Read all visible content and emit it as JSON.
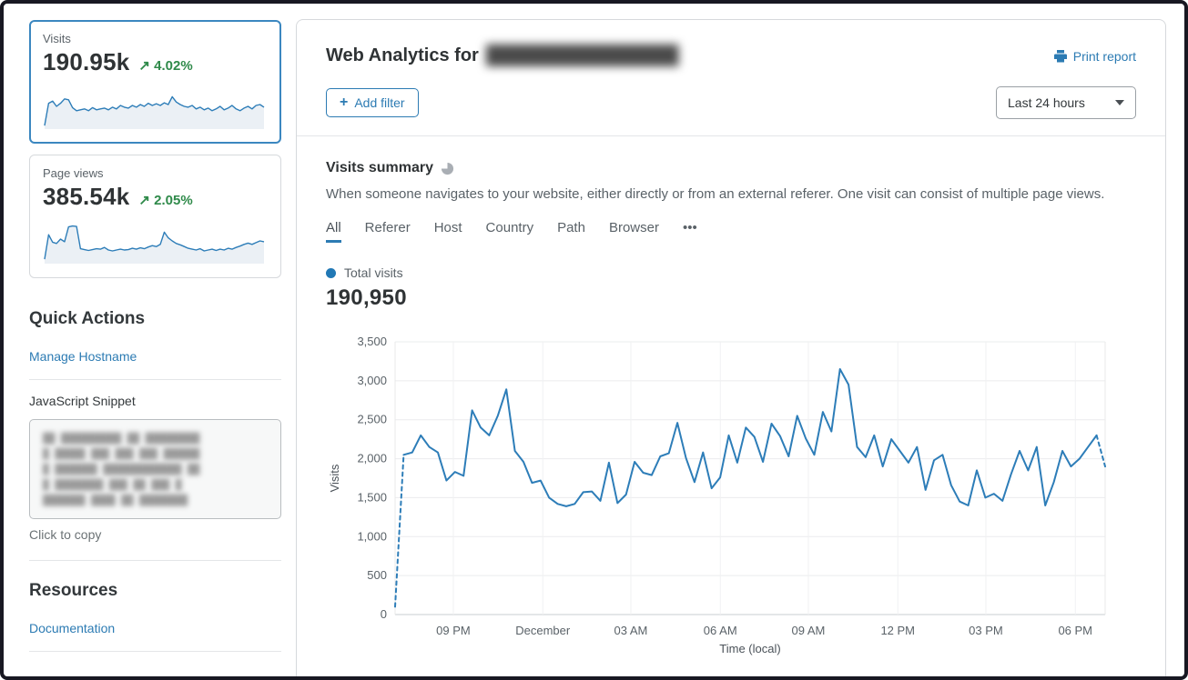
{
  "colors": {
    "accent_blue": "#2c7bb3",
    "chart_line": "#2d7db8",
    "positive_green": "#2f8a4a",
    "selected_card_border": "#3b87c0"
  },
  "sidebar": {
    "metric_cards": [
      {
        "label": "Visits",
        "value": "190.95k",
        "delta_arrow": "↗",
        "delta": "4.02%",
        "selected": true,
        "sparkline": [
          4,
          55,
          60,
          48,
          55,
          65,
          63,
          45,
          38,
          40,
          42,
          38,
          45,
          40,
          42,
          44,
          40,
          46,
          42,
          50,
          46,
          44,
          50,
          46,
          52,
          48,
          55,
          50,
          54,
          50,
          56,
          52,
          70,
          58,
          52,
          48,
          46,
          50,
          42,
          46,
          40,
          44,
          38,
          42,
          48,
          40,
          44,
          50,
          42,
          38,
          44,
          48,
          42,
          50,
          52,
          46
        ]
      },
      {
        "label": "Page views",
        "value": "385.54k",
        "delta_arrow": "↗",
        "delta": "2.05%",
        "selected": false,
        "sparkline": [
          6,
          62,
          45,
          42,
          52,
          46,
          80,
          82,
          81,
          30,
          28,
          26,
          28,
          30,
          29,
          33,
          27,
          25,
          27,
          29,
          27,
          28,
          31,
          29,
          32,
          30,
          34,
          37,
          35,
          40,
          68,
          55,
          48,
          42,
          39,
          35,
          31,
          29,
          27,
          30,
          25,
          27,
          29,
          26,
          29,
          27,
          31,
          29,
          33,
          36,
          40,
          43,
          40,
          44,
          48,
          46
        ]
      }
    ],
    "quick_actions_title": "Quick Actions",
    "manage_hostname_label": "Manage Hostname",
    "snippet_label": "JavaScript Snippet",
    "snippet_redacted_lines": [
      "██ ██████████ ██ █████████",
      "█ █████ ███ ███ ███ ██████",
      "█ ███████ █████████████ ██",
      "█ ████████ ███ ██ ███ █",
      "███████ ████ ██ ████████"
    ],
    "copy_hint": "Click to copy",
    "resources_title": "Resources",
    "documentation_label": "Documentation"
  },
  "header": {
    "title_prefix": "Web Analytics for",
    "domain_redacted": "████████████████",
    "print_report_label": "Print report",
    "add_filter_plus": "+",
    "add_filter_label": "Add filter",
    "time_range_value": "Last 24 hours"
  },
  "summary": {
    "title": "Visits summary",
    "description": "When someone navigates to your website, either directly or from an external referer. One visit can consist of multiple page views.",
    "tabs": [
      "All",
      "Referer",
      "Host",
      "Country",
      "Path",
      "Browser",
      "•••"
    ],
    "active_tab": "All",
    "legend_label": "Total visits",
    "total_value": "190,950"
  },
  "chart_data": {
    "type": "line",
    "title": "Total visits",
    "xlabel": "Time (local)",
    "ylabel": "Visits",
    "ylim": [
      0,
      3500
    ],
    "grid": true,
    "interval_minutes": 15,
    "y_ticks": [
      {
        "value": 0,
        "label": "0"
      },
      {
        "value": 500,
        "label": "500"
      },
      {
        "value": 1000,
        "label": "1,000"
      },
      {
        "value": 1500,
        "label": "1,500"
      },
      {
        "value": 2000,
        "label": "2,000"
      },
      {
        "value": 2500,
        "label": "2,500"
      },
      {
        "value": 3000,
        "label": "3,000"
      },
      {
        "value": 3500,
        "label": "3,500"
      }
    ],
    "x_ticks": [
      {
        "label": "09 PM",
        "pos": 0.082
      },
      {
        "label": "December",
        "pos": 0.208
      },
      {
        "label": "03 AM",
        "pos": 0.332
      },
      {
        "label": "06 AM",
        "pos": 0.458
      },
      {
        "label": "09 AM",
        "pos": 0.582
      },
      {
        "label": "12 PM",
        "pos": 0.708
      },
      {
        "label": "03 PM",
        "pos": 0.832
      },
      {
        "label": "06 PM",
        "pos": 0.958
      }
    ],
    "series": [
      {
        "name": "Total visits",
        "color": "#2d7db8",
        "dashed_head_segments": 1,
        "dashed_tail_segments": 1,
        "values": [
          100,
          2050,
          2080,
          2300,
          2150,
          2080,
          1720,
          1830,
          1780,
          2620,
          2400,
          2300,
          2550,
          2890,
          2100,
          1960,
          1690,
          1720,
          1500,
          1420,
          1390,
          1420,
          1570,
          1580,
          1460,
          1950,
          1430,
          1540,
          1960,
          1820,
          1790,
          2030,
          2070,
          2460,
          2010,
          1700,
          2080,
          1620,
          1760,
          2300,
          1950,
          2400,
          2280,
          1960,
          2450,
          2290,
          2030,
          2550,
          2260,
          2050,
          2600,
          2350,
          3150,
          2950,
          2150,
          2020,
          2300,
          1900,
          2250,
          2100,
          1950,
          2150,
          1600,
          1980,
          2050,
          1660,
          1450,
          1400,
          1850,
          1500,
          1550,
          1460,
          1800,
          2100,
          1850,
          2150,
          1400,
          1700,
          2100,
          1900,
          2000,
          2150,
          2300,
          1900
        ]
      }
    ]
  }
}
